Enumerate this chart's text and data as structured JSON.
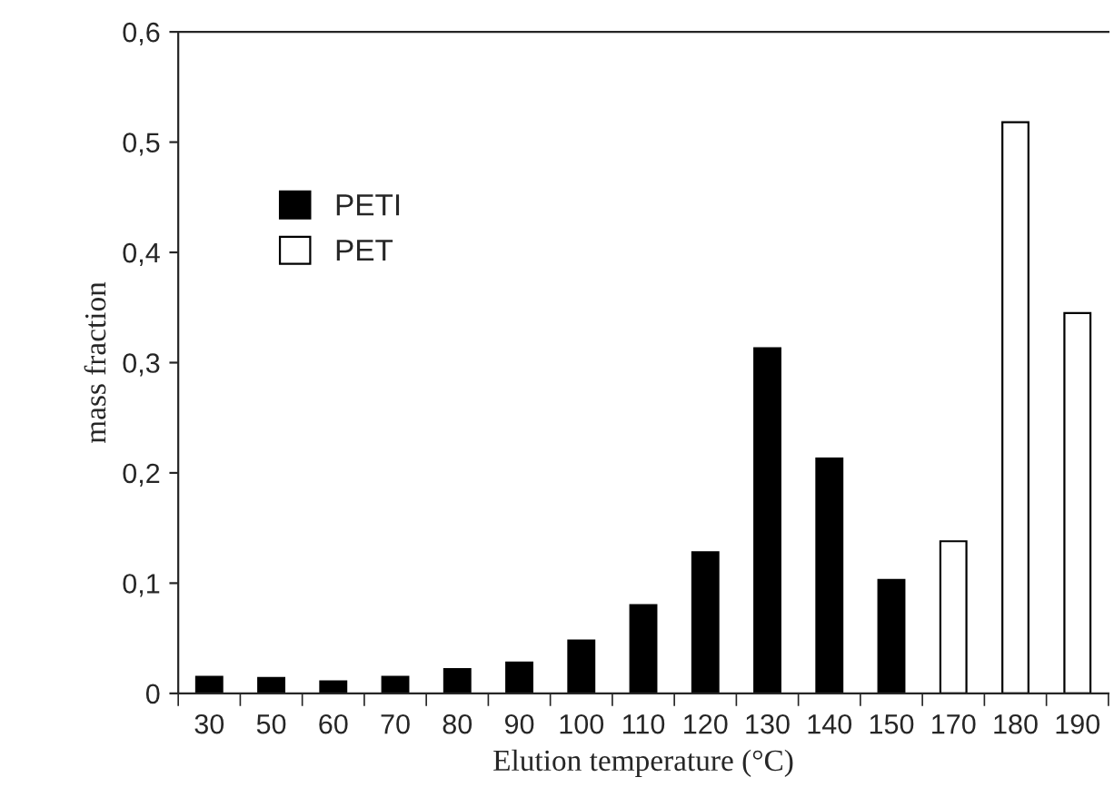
{
  "chart_data": {
    "type": "bar",
    "xlabel": "Elution temperature (°C)",
    "ylabel": "mass fraction",
    "categories": [
      "30",
      "50",
      "60",
      "70",
      "80",
      "90",
      "100",
      "110",
      "120",
      "130",
      "140",
      "150",
      "170",
      "180",
      "190"
    ],
    "series": [
      {
        "name": "PETI",
        "color": "#000000",
        "values": [
          0.015,
          0.014,
          0.011,
          0.015,
          0.022,
          0.028,
          0.048,
          0.08,
          0.128,
          0.313,
          0.213,
          0.103,
          null,
          null,
          null
        ]
      },
      {
        "name": "PET",
        "color": "#ffffff",
        "values": [
          null,
          null,
          null,
          null,
          null,
          null,
          null,
          null,
          null,
          null,
          null,
          null,
          0.138,
          0.518,
          0.345
        ]
      }
    ],
    "ylim": [
      0,
      0.6
    ],
    "yticks": [
      0,
      {
        "value": 0.1,
        "label": "0,1"
      },
      {
        "value": 0.2,
        "label": "0,2"
      },
      {
        "value": 0.3,
        "label": "0,3"
      },
      {
        "value": 0.4,
        "label": "0,4"
      },
      {
        "value": 0.5,
        "label": "0,5"
      },
      {
        "value": 0.6,
        "label": "0,6"
      }
    ],
    "grid": false,
    "legend": "top left"
  }
}
